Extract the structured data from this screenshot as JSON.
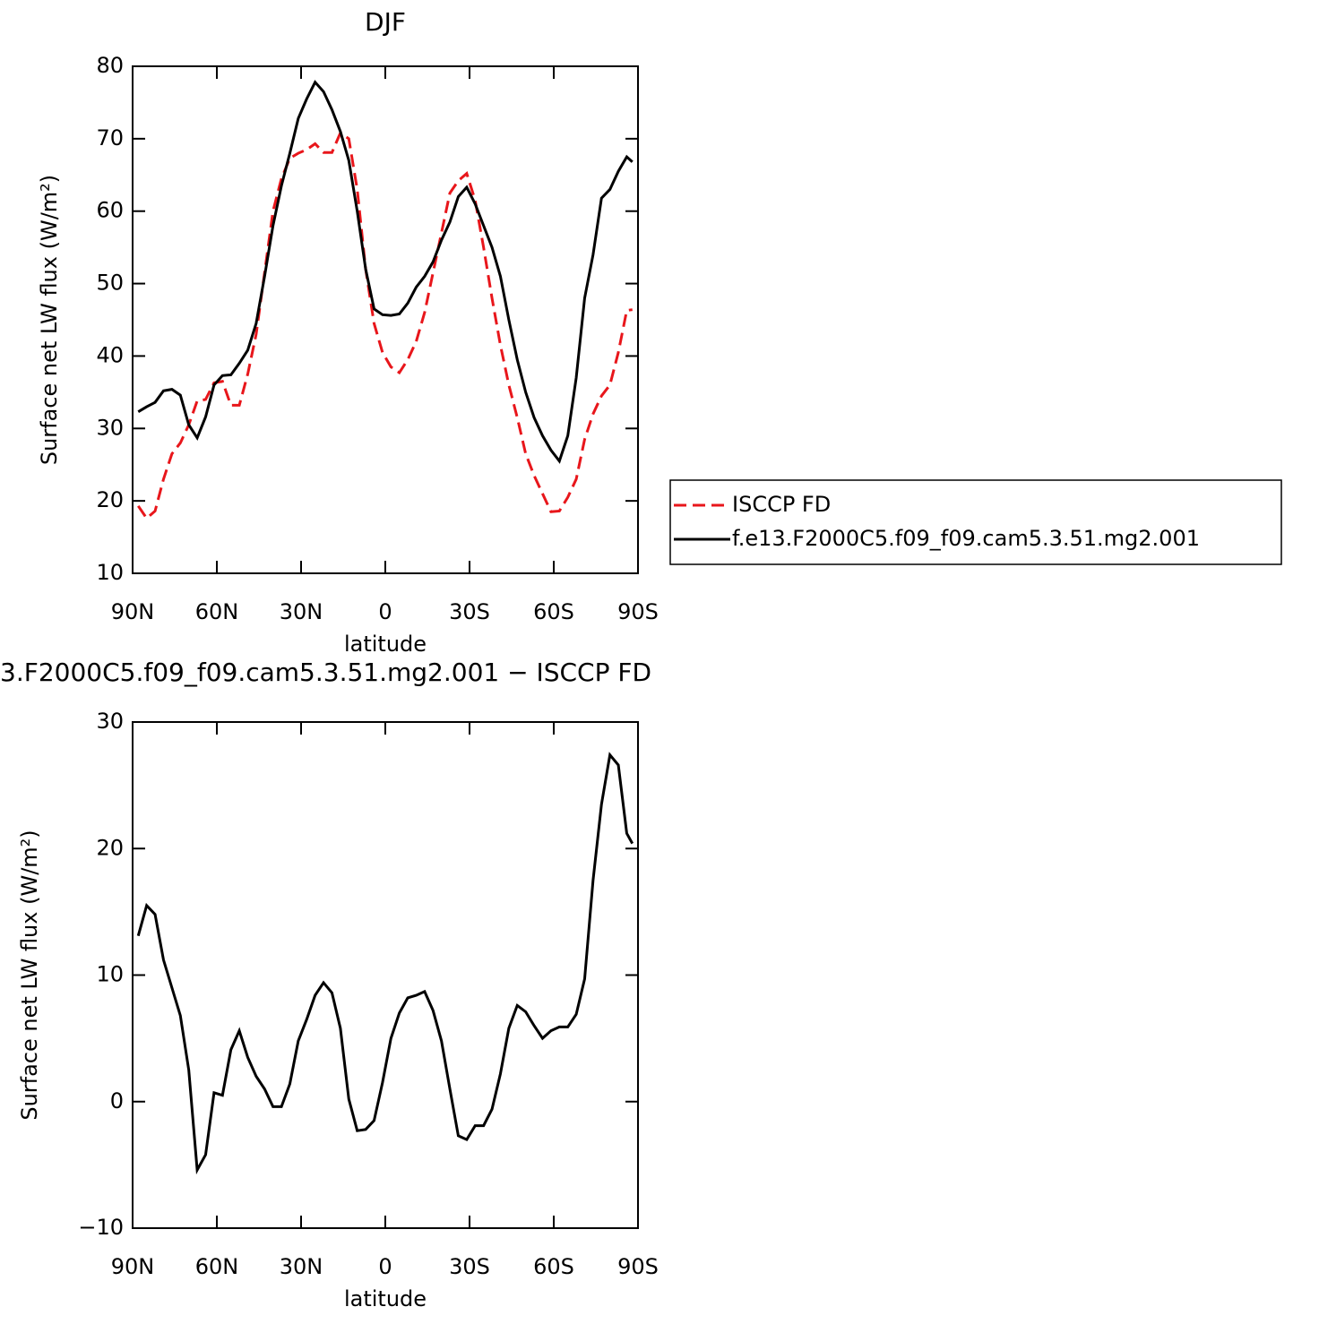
{
  "chart_data": [
    {
      "type": "line",
      "title": "DJF",
      "x_label": "latitude",
      "y_label": "Surface net LW flux (W/m²)",
      "x": [
        88,
        85,
        82,
        79,
        76,
        73,
        70,
        67,
        64,
        61,
        58,
        55,
        52,
        49,
        46,
        43,
        40,
        37,
        34,
        31,
        28,
        25,
        22,
        19,
        16,
        13,
        10,
        7,
        4,
        1,
        -2,
        -5,
        -8,
        -11,
        -14,
        -17,
        -20,
        -23,
        -26,
        -29,
        -32,
        -35,
        -38,
        -41,
        -44,
        -47,
        -50,
        -53,
        -56,
        -59,
        -62,
        -65,
        -68,
        -71,
        -74,
        -77,
        -80,
        -83,
        -86,
        -88
      ],
      "xlim": [
        90,
        -90
      ],
      "xticks": [
        {
          "value": 90,
          "label": "90N"
        },
        {
          "value": 60,
          "label": "60N"
        },
        {
          "value": 30,
          "label": "30N"
        },
        0,
        {
          "value": -30,
          "label": "30S"
        },
        {
          "value": -60,
          "label": "60S"
        },
        {
          "value": -90,
          "label": "90S"
        }
      ],
      "ylim": [
        10,
        80
      ],
      "yticks": [
        10,
        20,
        30,
        40,
        50,
        60,
        70,
        80
      ],
      "legend": "right",
      "series": [
        {
          "name": "ISCCP FD",
          "color": "#e8161b",
          "dash": true,
          "values": [
            19.3,
            17.6,
            18.6,
            23,
            26.5,
            28,
            30.5,
            33.8,
            34,
            36.3,
            36.5,
            33.2,
            33.2,
            37.5,
            43,
            51.5,
            60,
            64.5,
            67.3,
            68,
            68.5,
            69.3,
            68.1,
            68.1,
            70.8,
            70,
            63,
            52,
            44.5,
            40.5,
            38.5,
            37.7,
            39.5,
            42,
            46,
            51.5,
            57,
            62.5,
            64.2,
            65.2,
            61.5,
            55,
            48,
            41.5,
            36,
            31.5,
            26.5,
            23.5,
            21,
            18.5,
            18.6,
            20.5,
            23,
            28.5,
            32,
            34.5,
            36,
            40.5,
            46.3,
            46.4
          ]
        },
        {
          "name": "f.e13.F2000C5.f09_f09.cam5.3.51.mg2.001",
          "color": "#000000",
          "dash": false,
          "values": [
            32.3,
            33,
            33.6,
            35.2,
            35.4,
            34.6,
            30.5,
            28.7,
            31.6,
            36,
            37.3,
            37.4,
            39,
            40.8,
            44.5,
            51,
            58,
            63.5,
            68,
            72.8,
            75.5,
            77.8,
            76.5,
            74,
            71,
            67,
            60,
            52,
            46.5,
            45.7,
            45.6,
            45.8,
            47.3,
            49.5,
            51,
            53,
            56,
            58.5,
            62,
            63.3,
            61,
            58,
            55,
            51,
            45,
            39.5,
            35,
            31.5,
            29,
            27,
            25.5,
            29,
            37,
            48,
            54,
            61.8,
            63,
            65.5,
            67.5,
            66.8
          ]
        }
      ]
    },
    {
      "type": "line",
      "title": "3.F2000C5.f09_f09.cam5.3.51.mg2.001 − ISCCP FD",
      "x_label": "latitude",
      "y_label": "Surface net LW flux (W/m²)",
      "x": [
        88,
        85,
        82,
        79,
        76,
        73,
        70,
        67,
        64,
        61,
        58,
        55,
        52,
        49,
        46,
        43,
        40,
        37,
        34,
        31,
        28,
        25,
        22,
        19,
        16,
        13,
        10,
        7,
        4,
        1,
        -2,
        -5,
        -8,
        -11,
        -14,
        -17,
        -20,
        -23,
        -26,
        -29,
        -32,
        -35,
        -38,
        -41,
        -44,
        -47,
        -50,
        -53,
        -56,
        -59,
        -62,
        -65,
        -68,
        -71,
        -74,
        -77,
        -80,
        -83,
        -86,
        -88
      ],
      "xlim": [
        90,
        -90
      ],
      "xticks": [
        {
          "value": 90,
          "label": "90N"
        },
        {
          "value": 60,
          "label": "60N"
        },
        {
          "value": 30,
          "label": "30N"
        },
        0,
        {
          "value": -30,
          "label": "30S"
        },
        {
          "value": -60,
          "label": "60S"
        },
        {
          "value": -90,
          "label": "90S"
        }
      ],
      "ylim": [
        -10,
        30
      ],
      "yticks": [
        {
          "value": -10,
          "label": "−10"
        },
        0,
        10,
        20,
        30
      ],
      "series": [
        {
          "name": null,
          "color": "#000000",
          "dash": false,
          "values": [
            13.1,
            15.5,
            14.8,
            11.2,
            9,
            6.8,
            2.5,
            -5.4,
            -4.2,
            0.7,
            0.5,
            4.1,
            5.6,
            3.5,
            2,
            1,
            -0.4,
            -0.4,
            1.4,
            4.8,
            6.5,
            8.4,
            9.4,
            8.6,
            5.8,
            0.2,
            -2.3,
            -2.2,
            -1.5,
            1.5,
            5,
            7,
            8.2,
            8.4,
            8.7,
            7.2,
            4.8,
            1,
            -2.7,
            -3,
            -1.9,
            -1.9,
            -0.6,
            2.2,
            5.8,
            7.6,
            7.1,
            6,
            5,
            5.6,
            5.9,
            5.9,
            6.9,
            9.7,
            17.5,
            23.5,
            27.4,
            26.6,
            21.2,
            20.4
          ]
        }
      ]
    }
  ]
}
